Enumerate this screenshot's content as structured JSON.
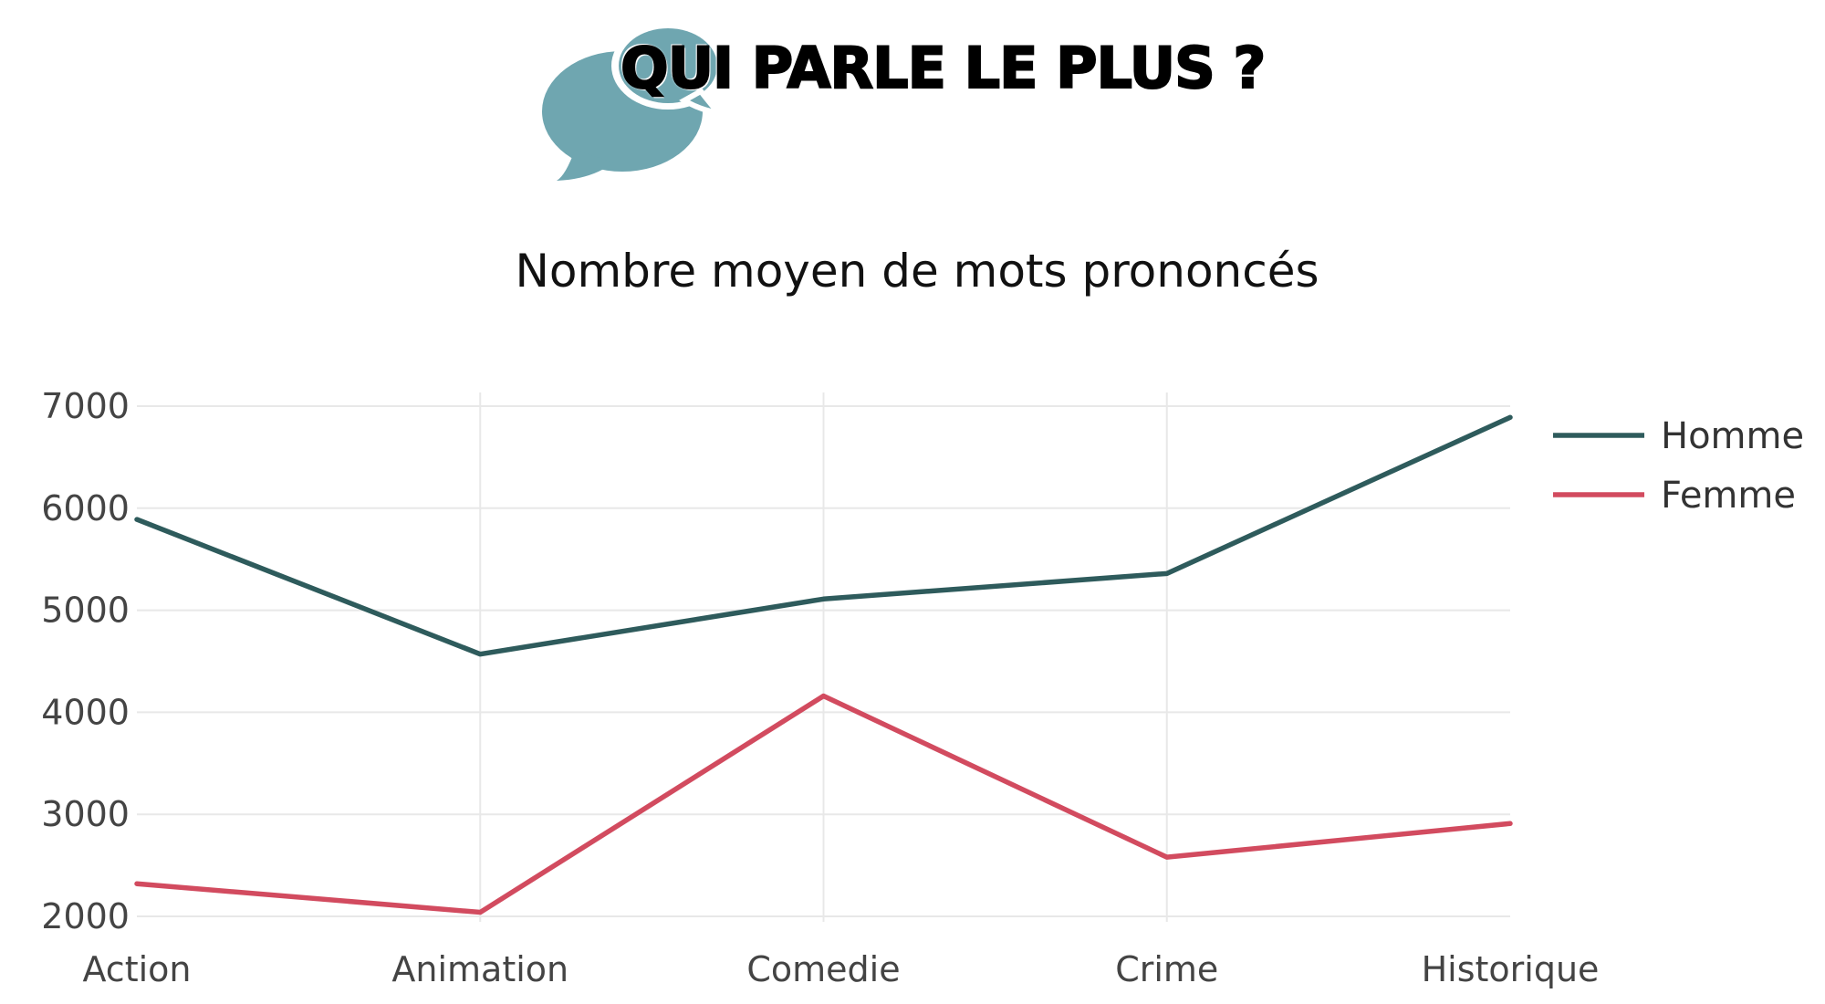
{
  "header": {
    "title": "QUI PARLE LE PLUS ?",
    "subtitle": "Nombre moyen de mots prononcés",
    "icon": "speech-bubbles-icon",
    "icon_color": "#6fa6b0"
  },
  "chart_data": {
    "type": "line",
    "title": "Nombre moyen de mots prononcés",
    "categories": [
      "Action",
      "Animation",
      "Comedie",
      "Crime",
      "Historique"
    ],
    "series": [
      {
        "name": "Homme",
        "color": "#2e5b5c",
        "values": [
          5890,
          4570,
          5110,
          5360,
          6890
        ]
      },
      {
        "name": "Femme",
        "color": "#d24b5f",
        "values": [
          2320,
          2040,
          4160,
          2580,
          2910
        ]
      }
    ],
    "yticks": [
      2000,
      3000,
      4000,
      5000,
      6000,
      7000
    ],
    "ylim": [
      1980,
      7150
    ],
    "xlabel": "",
    "ylabel": "",
    "grid": true,
    "legend": "top-right"
  }
}
